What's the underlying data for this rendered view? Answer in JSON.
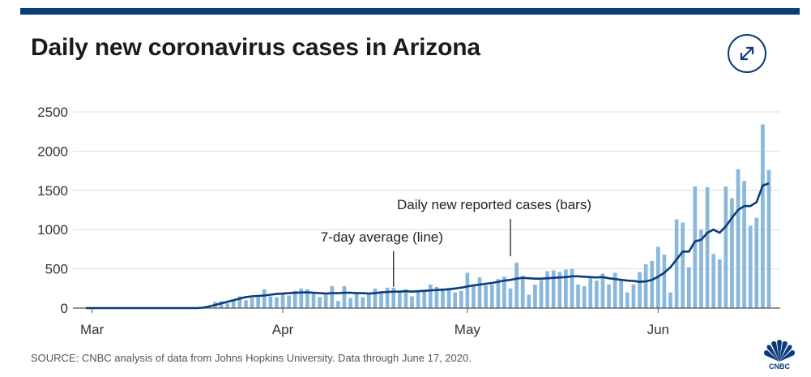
{
  "header": {
    "title": "Daily new coronavirus cases in Arizona"
  },
  "controls": {
    "expand_icon": "expand-arrows-icon"
  },
  "footer": {
    "source": "SOURCE: CNBC analysis of data from Johns Hopkins University. Data through June 17, 2020."
  },
  "logo": {
    "text": "CNBC",
    "icon": "peacock-icon"
  },
  "colors": {
    "bar": "#8ab8dc",
    "line": "#0c3b7a",
    "accent": "#0c3b7a",
    "axis": "#555555",
    "grid": "#dddddd"
  },
  "chart_data": {
    "type": "bar",
    "title": "Daily new coronavirus cases in Arizona",
    "xlabel": "",
    "ylabel": "",
    "ylim": [
      0,
      2500
    ],
    "yticks": [
      0,
      500,
      1000,
      1500,
      2000,
      2500
    ],
    "x_start_date": "2020-02-29",
    "x_end_date": "2020-06-17",
    "xtick_labels": [
      {
        "label": "Mar",
        "day_index": 1
      },
      {
        "label": "Apr",
        "day_index": 32
      },
      {
        "label": "May",
        "day_index": 62
      },
      {
        "label": "Jun",
        "day_index": 93
      }
    ],
    "annotations": [
      {
        "text": "Daily new reported cases (bars)",
        "day_index": 69,
        "value": 660
      },
      {
        "text": "7-day average (line)",
        "day_index": 50,
        "value": 270
      }
    ],
    "series": [
      {
        "name": "Daily new reported cases",
        "kind": "bar",
        "values": [
          0,
          0,
          0,
          0,
          0,
          0,
          0,
          0,
          0,
          0,
          0,
          0,
          0,
          0,
          0,
          0,
          0,
          0,
          0,
          0,
          0,
          80,
          90,
          60,
          110,
          150,
          100,
          130,
          140,
          240,
          150,
          140,
          180,
          160,
          220,
          250,
          240,
          190,
          140,
          170,
          280,
          90,
          280,
          130,
          180,
          140,
          180,
          250,
          210,
          260,
          260,
          210,
          240,
          150,
          220,
          210,
          300,
          270,
          250,
          260,
          200,
          220,
          450,
          300,
          390,
          290,
          300,
          370,
          400,
          250,
          580,
          410,
          170,
          300,
          360,
          470,
          480,
          460,
          490,
          500,
          300,
          280,
          380,
          350,
          440,
          300,
          450,
          350,
          200,
          300,
          460,
          560,
          600,
          780,
          680,
          200,
          1130,
          1090,
          520,
          1550,
          1000,
          1540,
          690,
          620,
          1550,
          1400,
          1770,
          1620,
          1050,
          1150,
          2340,
          1760
        ]
      },
      {
        "name": "7-day average",
        "kind": "line",
        "values": [
          0,
          0,
          0,
          0,
          0,
          0,
          0,
          0,
          0,
          0,
          0,
          0,
          0,
          0,
          0,
          0,
          0,
          0,
          0,
          5,
          20,
          40,
          60,
          80,
          100,
          120,
          140,
          150,
          155,
          160,
          170,
          180,
          185,
          190,
          195,
          198,
          200,
          195,
          190,
          185,
          190,
          190,
          195,
          195,
          190,
          190,
          185,
          190,
          200,
          205,
          210,
          210,
          215,
          210,
          215,
          220,
          225,
          230,
          235,
          240,
          250,
          260,
          275,
          290,
          300,
          310,
          320,
          335,
          350,
          360,
          375,
          385,
          380,
          375,
          375,
          380,
          385,
          390,
          395,
          405,
          405,
          400,
          395,
          390,
          395,
          380,
          370,
          360,
          350,
          345,
          335,
          340,
          360,
          400,
          450,
          520,
          620,
          720,
          720,
          850,
          870,
          960,
          1000,
          960,
          1040,
          1150,
          1250,
          1300,
          1300,
          1350,
          1560,
          1590
        ]
      }
    ]
  }
}
